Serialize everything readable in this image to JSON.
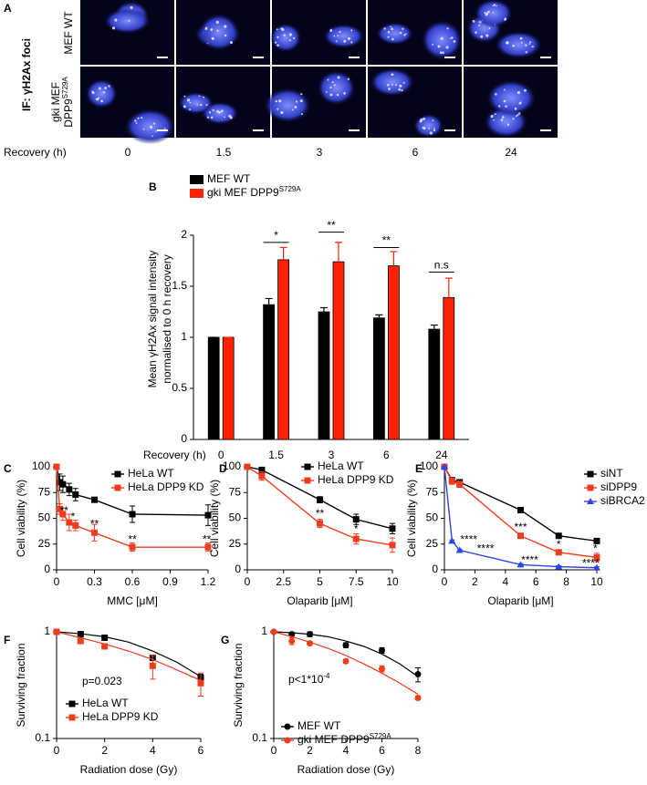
{
  "panel_labels": [
    "A",
    "B",
    "C",
    "D",
    "E",
    "F",
    "G"
  ],
  "panel_a": {
    "stain_label": "IF: γH2Ax foci",
    "rows": [
      {
        "label_lines": [
          "MEF WT"
        ]
      },
      {
        "label_lines": [
          "gki MEF",
          "DPP9"
        ],
        "label_sup": "S729A"
      }
    ],
    "x_label": "Recovery (h)",
    "columns": [
      "0",
      "1.5",
      "3",
      "6",
      "24"
    ]
  },
  "chart_data": [
    {
      "type": "bar",
      "categories": [
        "0",
        "1.5",
        "3",
        "6",
        "24"
      ],
      "xlabel": "Recovery (h)",
      "ylabel": [
        "Mean γH2Ax signal intensity",
        "normalised to 0 h recovery"
      ],
      "ylim": [
        0,
        2
      ],
      "yticks": [
        0,
        0.5,
        1,
        1.5,
        2
      ],
      "legend": "upper left",
      "series": [
        {
          "name": "MEF WT",
          "color": "#000000",
          "values": [
            1,
            1.32,
            1.25,
            1.19,
            1.08
          ],
          "errors": [
            0,
            0.06,
            0.04,
            0.03,
            0.04
          ]
        },
        {
          "name": "gki MEF DPP9",
          "name_sup": "S729A",
          "color": "#ff2200",
          "values": [
            1,
            1.76,
            1.74,
            1.7,
            1.39
          ],
          "errors": [
            0,
            0.12,
            0.19,
            0.14,
            0.19
          ]
        }
      ],
      "annotations": [
        {
          "text": "*",
          "category": 1,
          "y": 1.93
        },
        {
          "text": "**",
          "category": 2,
          "y": 2.03
        },
        {
          "text": "**",
          "category": 3,
          "y": 1.88
        },
        {
          "text": "n.s",
          "category": 4,
          "y": 1.64
        }
      ]
    },
    {
      "type": "line",
      "xlabel": "MMC [μM]",
      "ylabel": "Cell viability (%)",
      "xlim": [
        0,
        1.2
      ],
      "xticks": [
        0,
        0.3,
        0.6,
        0.9,
        1.2
      ],
      "ylim": [
        0,
        100
      ],
      "yticks": [
        0,
        25,
        50,
        75,
        100
      ],
      "legend": "upper right",
      "series": [
        {
          "name": "HeLa WT",
          "color": "#000000",
          "marker": "square",
          "x": [
            0,
            0.025,
            0.05,
            0.1,
            0.15,
            0.3,
            0.6,
            1.2
          ],
          "values": [
            100,
            85,
            83,
            78,
            73,
            68,
            54,
            53
          ],
          "errors": [
            0,
            8,
            8,
            6,
            6,
            2,
            8,
            10
          ]
        },
        {
          "name": "HeLa DPP9 KD",
          "color": "#f03c1e",
          "marker": "square",
          "x": [
            0,
            0.025,
            0.05,
            0.1,
            0.15,
            0.3,
            0.6,
            1.2
          ],
          "values": [
            100,
            59,
            54,
            46,
            43,
            36,
            22,
            22
          ],
          "errors": [
            0,
            5,
            6,
            8,
            5,
            8,
            4,
            4
          ]
        }
      ],
      "annotations": [
        {
          "text": "**",
          "x": 0.06,
          "y": 57
        },
        {
          "text": "*",
          "x": 0.13,
          "y": 51
        },
        {
          "text": "**",
          "x": 0.3,
          "y": 44
        },
        {
          "text": "**",
          "x": 0.6,
          "y": 29
        },
        {
          "text": "**",
          "x": 1.19,
          "y": 29
        }
      ]
    },
    {
      "type": "line",
      "xlabel": "Olaparib [μM]",
      "ylabel": "Cell viability (%)",
      "xlim": [
        0,
        10
      ],
      "xticks": [
        0,
        2.5,
        5,
        7.5,
        10
      ],
      "ylim": [
        0,
        100
      ],
      "yticks": [
        0,
        25,
        50,
        75,
        100
      ],
      "legend": "upper right",
      "series": [
        {
          "name": "HeLa WT",
          "color": "#000000",
          "marker": "square",
          "x": [
            0,
            1,
            5,
            7.5,
            10
          ],
          "values": [
            100,
            97,
            68,
            49,
            40
          ],
          "errors": [
            0,
            2,
            3,
            5,
            5
          ]
        },
        {
          "name": "HeLa DPP9 KD",
          "color": "#f03c1e",
          "marker": "square",
          "x": [
            0,
            1,
            5,
            7.5,
            10
          ],
          "values": [
            100,
            91,
            45,
            30,
            24
          ],
          "errors": [
            0,
            4,
            4,
            5,
            7
          ]
        }
      ],
      "annotations": [
        {
          "text": "**",
          "x": 5,
          "y": 54
        },
        {
          "text": "*",
          "x": 7.5,
          "y": 39
        }
      ]
    },
    {
      "type": "line",
      "xlabel": "Olaparib [μM]",
      "ylabel": "Cell viability (%)",
      "xlim": [
        0,
        10
      ],
      "xticks": [
        0,
        2,
        4,
        6,
        8,
        10
      ],
      "ylim": [
        0,
        100
      ],
      "yticks": [
        0,
        25,
        50,
        75,
        100
      ],
      "legend": "upper right",
      "series": [
        {
          "name": "siNT",
          "color": "#000000",
          "marker": "square",
          "x": [
            0,
            0.5,
            1,
            5,
            7.5,
            10
          ],
          "values": [
            100,
            87,
            85,
            58,
            33,
            28
          ],
          "errors": [
            0,
            2,
            2,
            1,
            1,
            1
          ]
        },
        {
          "name": "siDPP9",
          "color": "#f03c1e",
          "marker": "square",
          "x": [
            0,
            0.5,
            1,
            5,
            7.5,
            10
          ],
          "values": [
            100,
            86,
            83,
            33,
            17,
            12
          ],
          "errors": [
            0,
            3,
            3,
            2,
            1,
            4
          ]
        },
        {
          "name": "siBRCA2",
          "color": "#2a46e8",
          "marker": "triangle",
          "x": [
            0,
            0.5,
            1,
            5,
            7.5,
            10
          ],
          "values": [
            100,
            28,
            19,
            5,
            3,
            2
          ],
          "errors": [
            0,
            1,
            1,
            1,
            1,
            1
          ]
        }
      ],
      "annotations": [
        {
          "text": "****",
          "x": 1.6,
          "y": 29
        },
        {
          "text": "****",
          "x": 2.7,
          "y": 20
        },
        {
          "text": "***",
          "x": 5,
          "y": 41
        },
        {
          "text": "*",
          "x": 7.5,
          "y": 24
        },
        {
          "text": "*",
          "x": 9.9,
          "y": 20
        },
        {
          "text": "****",
          "x": 5.6,
          "y": 9
        },
        {
          "text": "****",
          "x": 9.6,
          "y": 6
        }
      ]
    },
    {
      "type": "line",
      "xlabel": "Radiation dose (Gy)",
      "ylabel": "Surviving fraction",
      "yscale": "log",
      "xlim": [
        0,
        6
      ],
      "xticks": [
        0,
        2,
        4,
        6
      ],
      "ylim": [
        0.1,
        1
      ],
      "yticks": [
        0.1,
        1
      ],
      "legend": "lower left",
      "note": "p=0.023",
      "series": [
        {
          "name": "HeLa WT",
          "color": "#000000",
          "marker": "square",
          "x": [
            0,
            1,
            2,
            4,
            6
          ],
          "values": [
            1,
            0.95,
            0.88,
            0.57,
            0.37
          ],
          "errors": [
            0,
            0.01,
            0.02,
            0.02,
            0.03
          ],
          "fit": {
            "x": [
              0,
              1,
              2,
              3,
              4,
              5,
              6
            ],
            "values": [
              1,
              0.96,
              0.9,
              0.8,
              0.66,
              0.52,
              0.38
            ]
          }
        },
        {
          "name": "HeLa DPP9 KD",
          "color": "#f03c1e",
          "marker": "square",
          "x": [
            0,
            1,
            2,
            4,
            6
          ],
          "values": [
            1,
            0.82,
            0.73,
            0.48,
            0.33
          ],
          "errors": [
            0,
            0.03,
            0.02,
            0.12,
            0.08
          ],
          "fit": {
            "x": [
              0,
              1,
              2,
              3,
              4,
              5,
              6
            ],
            "values": [
              1,
              0.88,
              0.77,
              0.66,
              0.55,
              0.44,
              0.35
            ]
          }
        }
      ]
    },
    {
      "type": "line",
      "xlabel": "Radiation dose (Gy)",
      "ylabel": "Surviving fraction",
      "yscale": "log",
      "xlim": [
        0,
        8
      ],
      "xticks": [
        0,
        2,
        4,
        6,
        8
      ],
      "ylim": [
        0.1,
        1
      ],
      "yticks": [
        0.1,
        1
      ],
      "legend": "lower left",
      "note": "p<1*10",
      "note_sup": "-4",
      "series": [
        {
          "name": "MEF WT",
          "color": "#000000",
          "marker": "circle",
          "x": [
            0,
            1,
            2,
            4,
            6,
            8
          ],
          "values": [
            1,
            0.95,
            0.95,
            0.75,
            0.67,
            0.4
          ],
          "errors": [
            0,
            0.03,
            0.05,
            0.04,
            0.04,
            0.06
          ],
          "fit": {
            "x": [
              0,
              1,
              2,
              3,
              4,
              5,
              6,
              7,
              8
            ],
            "values": [
              1,
              0.98,
              0.95,
              0.9,
              0.82,
              0.73,
              0.62,
              0.5,
              0.38
            ]
          }
        },
        {
          "name": "gki MEF DPP9",
          "name_sup": "S729A",
          "color": "#f03c1e",
          "marker": "circle",
          "x": [
            0,
            1,
            2,
            4,
            6,
            8
          ],
          "values": [
            1,
            0.82,
            0.78,
            0.53,
            0.45,
            0.24
          ],
          "errors": [
            0,
            0.06,
            0.03,
            0.02,
            0.03,
            0.01
          ],
          "fit": {
            "x": [
              0,
              1,
              2,
              3,
              4,
              5,
              6,
              7,
              8
            ],
            "values": [
              1,
              0.9,
              0.8,
              0.7,
              0.6,
              0.5,
              0.41,
              0.33,
              0.26
            ]
          }
        }
      ]
    }
  ]
}
